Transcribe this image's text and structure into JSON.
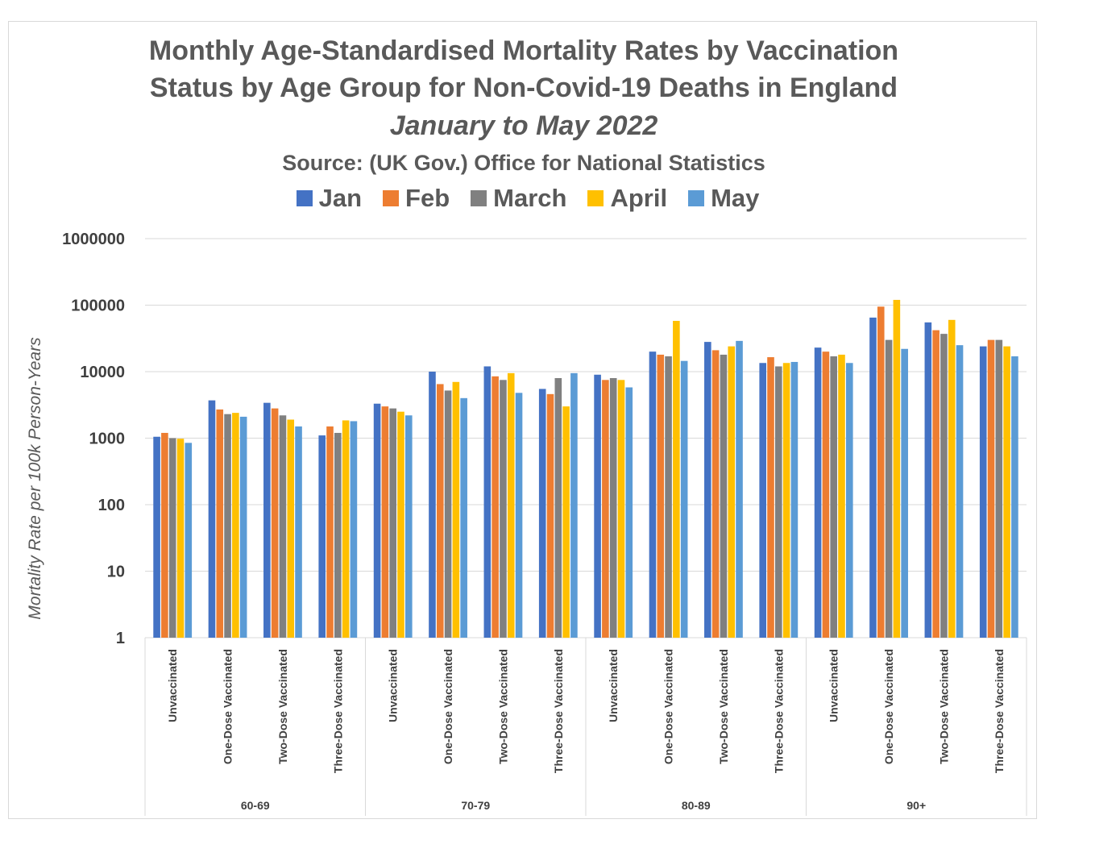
{
  "chart_data": {
    "type": "bar",
    "title": "Monthly Age-Standardised Mortality Rates by Vaccination",
    "title_line2": "Status by Age Group for Non-Covid-19 Deaths in England",
    "subtitle": "January to May 2022",
    "source": "Source: (UK Gov.) Office for National Statistics",
    "ylabel": "Mortality Rate per 100k Person-Years",
    "xlabel": "",
    "yscale": "log",
    "ylim": [
      1,
      1000000
    ],
    "yticks": [
      "1",
      "10",
      "100",
      "1000",
      "10000",
      "100000",
      "1000000"
    ],
    "legend_position": "top",
    "grid": true,
    "groups": [
      {
        "name": "60-69",
        "categories": [
          "Unvaccinated",
          "One-Dose Vaccinated",
          "Two-Dose Vaccinated",
          "Three-Dose Vaccinated"
        ]
      },
      {
        "name": "70-79",
        "categories": [
          "Unvaccinated",
          "One-Dose Vaccinated",
          "Two-Dose Vaccinated",
          "Three-Dose Vaccinated"
        ]
      },
      {
        "name": "80-89",
        "categories": [
          "Unvaccinated",
          "One-Dose Vaccinated",
          "Two-Dose Vaccinated",
          "Three-Dose Vaccinated"
        ]
      },
      {
        "name": "90+",
        "categories": [
          "Unvaccinated",
          "One-Dose Vaccinated",
          "Two-Dose Vaccinated",
          "Three-Dose Vaccinated"
        ]
      }
    ],
    "series": [
      {
        "name": "Jan",
        "color": "#4472c4",
        "values": [
          1050,
          3700,
          3400,
          1100,
          3300,
          10000,
          12000,
          5500,
          9000,
          20000,
          28000,
          13500,
          23000,
          65000,
          55000,
          24000
        ]
      },
      {
        "name": "Feb",
        "color": "#ed7d31",
        "values": [
          1200,
          2700,
          2800,
          1500,
          3000,
          6500,
          8500,
          4600,
          7500,
          18000,
          21000,
          16500,
          20000,
          95000,
          42000,
          30000
        ]
      },
      {
        "name": "March",
        "color": "#808080",
        "values": [
          1000,
          2300,
          2200,
          1200,
          2800,
          5200,
          7500,
          8000,
          8000,
          17000,
          18000,
          12000,
          17000,
          30000,
          37000,
          30000
        ]
      },
      {
        "name": "April",
        "color": "#ffc000",
        "values": [
          980,
          2400,
          1900,
          1850,
          2500,
          7000,
          9500,
          3000,
          7500,
          58000,
          24000,
          13500,
          18000,
          120000,
          60000,
          24000
        ]
      },
      {
        "name": "May",
        "color": "#5b9bd5",
        "values": [
          850,
          2100,
          1500,
          1800,
          2200,
          4000,
          4800,
          9500,
          5800,
          14500,
          29000,
          14000,
          13500,
          22000,
          25000,
          17000
        ]
      }
    ]
  }
}
